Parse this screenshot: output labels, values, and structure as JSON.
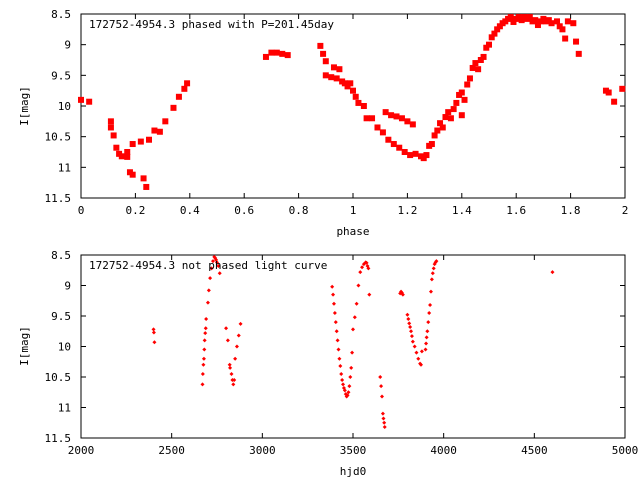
{
  "chart_data": [
    {
      "type": "scatter",
      "title": "172752-4954.3 phased with P=201.45day",
      "xlabel": "phase",
      "ylabel": "I[mag]",
      "xlim": [
        0,
        2
      ],
      "ylim": [
        8.5,
        11.5
      ],
      "y_inverted": true,
      "grid": false,
      "legend": "none",
      "color": "#ff0000",
      "xticks": [
        "0",
        "0.2",
        "0.4",
        "0.6",
        "0.8",
        "1",
        "1.2",
        "1.4",
        "1.6",
        "1.8",
        "2"
      ],
      "yticks": [
        "8.5",
        "9",
        "9.5",
        "10",
        "10.5",
        "11",
        "11.5"
      ],
      "points": [
        [
          0.0,
          9.9
        ],
        [
          0.03,
          9.93
        ],
        [
          0.11,
          10.25
        ],
        [
          0.11,
          10.35
        ],
        [
          0.12,
          10.48
        ],
        [
          0.13,
          10.68
        ],
        [
          0.14,
          10.78
        ],
        [
          0.15,
          10.82
        ],
        [
          0.17,
          10.75
        ],
        [
          0.17,
          10.83
        ],
        [
          0.18,
          11.08
        ],
        [
          0.19,
          11.12
        ],
        [
          0.19,
          10.62
        ],
        [
          0.22,
          10.58
        ],
        [
          0.23,
          11.18
        ],
        [
          0.24,
          11.32
        ],
        [
          0.25,
          10.55
        ],
        [
          0.27,
          10.4
        ],
        [
          0.29,
          10.42
        ],
        [
          0.31,
          10.25
        ],
        [
          0.34,
          10.03
        ],
        [
          0.36,
          9.85
        ],
        [
          0.38,
          9.72
        ],
        [
          0.39,
          9.63
        ],
        [
          0.68,
          9.2
        ],
        [
          0.7,
          9.13
        ],
        [
          0.72,
          9.13
        ],
        [
          0.74,
          9.15
        ],
        [
          0.76,
          9.17
        ],
        [
          0.88,
          9.02
        ],
        [
          0.89,
          9.15
        ],
        [
          0.9,
          9.27
        ],
        [
          0.9,
          9.5
        ],
        [
          0.92,
          9.53
        ],
        [
          0.93,
          9.37
        ],
        [
          0.94,
          9.55
        ],
        [
          0.95,
          9.4
        ],
        [
          0.96,
          9.6
        ],
        [
          0.97,
          9.63
        ],
        [
          0.98,
          9.68
        ],
        [
          0.99,
          9.63
        ],
        [
          1.0,
          9.75
        ],
        [
          1.01,
          9.85
        ],
        [
          1.02,
          9.95
        ],
        [
          1.04,
          10.0
        ],
        [
          1.05,
          10.2
        ],
        [
          1.07,
          10.2
        ],
        [
          1.09,
          10.35
        ],
        [
          1.11,
          10.43
        ],
        [
          1.12,
          10.1
        ],
        [
          1.13,
          10.55
        ],
        [
          1.14,
          10.15
        ],
        [
          1.15,
          10.62
        ],
        [
          1.16,
          10.17
        ],
        [
          1.17,
          10.68
        ],
        [
          1.18,
          10.2
        ],
        [
          1.19,
          10.75
        ],
        [
          1.2,
          10.25
        ],
        [
          1.21,
          10.8
        ],
        [
          1.22,
          10.3
        ],
        [
          1.23,
          10.78
        ],
        [
          1.25,
          10.82
        ],
        [
          1.26,
          10.85
        ],
        [
          1.27,
          10.8
        ],
        [
          1.28,
          10.65
        ],
        [
          1.29,
          10.62
        ],
        [
          1.3,
          10.48
        ],
        [
          1.31,
          10.4
        ],
        [
          1.32,
          10.28
        ],
        [
          1.33,
          10.35
        ],
        [
          1.34,
          10.18
        ],
        [
          1.35,
          10.1
        ],
        [
          1.36,
          10.2
        ],
        [
          1.37,
          10.05
        ],
        [
          1.38,
          9.95
        ],
        [
          1.39,
          9.82
        ],
        [
          1.4,
          9.78
        ],
        [
          1.4,
          10.15
        ],
        [
          1.41,
          9.9
        ],
        [
          1.42,
          9.65
        ],
        [
          1.43,
          9.55
        ],
        [
          1.44,
          9.38
        ],
        [
          1.45,
          9.3
        ],
        [
          1.46,
          9.4
        ],
        [
          1.47,
          9.25
        ],
        [
          1.48,
          9.2
        ],
        [
          1.49,
          9.05
        ],
        [
          1.5,
          9.0
        ],
        [
          1.51,
          8.88
        ],
        [
          1.52,
          8.82
        ],
        [
          1.53,
          8.75
        ],
        [
          1.54,
          8.7
        ],
        [
          1.55,
          8.65
        ],
        [
          1.56,
          8.62
        ],
        [
          1.57,
          8.58
        ],
        [
          1.58,
          8.55
        ],
        [
          1.59,
          8.63
        ],
        [
          1.6,
          8.58
        ],
        [
          1.61,
          8.55
        ],
        [
          1.62,
          8.6
        ],
        [
          1.63,
          8.55
        ],
        [
          1.64,
          8.58
        ],
        [
          1.65,
          8.55
        ],
        [
          1.66,
          8.62
        ],
        [
          1.67,
          8.6
        ],
        [
          1.68,
          8.68
        ],
        [
          1.69,
          8.62
        ],
        [
          1.7,
          8.58
        ],
        [
          1.71,
          8.62
        ],
        [
          1.72,
          8.6
        ],
        [
          1.73,
          8.65
        ],
        [
          1.75,
          8.62
        ],
        [
          1.76,
          8.7
        ],
        [
          1.77,
          8.75
        ],
        [
          1.78,
          8.9
        ],
        [
          1.79,
          8.62
        ],
        [
          1.81,
          8.65
        ],
        [
          1.82,
          8.95
        ],
        [
          1.83,
          9.15
        ],
        [
          1.93,
          9.75
        ],
        [
          1.94,
          9.78
        ],
        [
          1.96,
          9.93
        ],
        [
          1.99,
          9.72
        ]
      ]
    },
    {
      "type": "scatter",
      "title": "172752-4954.3 not phased light curve",
      "xlabel": "hjd0",
      "ylabel": "I[mag]",
      "xlim": [
        2000,
        5000
      ],
      "ylim": [
        8.5,
        11.5
      ],
      "y_inverted": true,
      "grid": false,
      "legend": "none",
      "color": "#ff0000",
      "xticks": [
        "2000",
        "2500",
        "3000",
        "3500",
        "4000",
        "4500",
        "5000"
      ],
      "yticks": [
        "8.5",
        "9",
        "9.5",
        "10",
        "10.5",
        "11",
        "11.5"
      ],
      "points": [
        [
          2400,
          9.72
        ],
        [
          2402,
          9.77
        ],
        [
          2405,
          9.93
        ],
        [
          2670,
          10.62
        ],
        [
          2672,
          10.45
        ],
        [
          2675,
          10.3
        ],
        [
          2678,
          10.2
        ],
        [
          2680,
          10.05
        ],
        [
          2682,
          9.9
        ],
        [
          2685,
          9.78
        ],
        [
          2688,
          9.7
        ],
        [
          2690,
          9.55
        ],
        [
          2700,
          9.28
        ],
        [
          2705,
          9.08
        ],
        [
          2712,
          8.88
        ],
        [
          2720,
          8.72
        ],
        [
          2728,
          8.6
        ],
        [
          2735,
          8.53
        ],
        [
          2740,
          8.55
        ],
        [
          2745,
          8.58
        ],
        [
          2750,
          8.62
        ],
        [
          2758,
          8.68
        ],
        [
          2765,
          8.8
        ],
        [
          2800,
          9.7
        ],
        [
          2810,
          9.9
        ],
        [
          2820,
          10.3
        ],
        [
          2822,
          10.35
        ],
        [
          2830,
          10.45
        ],
        [
          2835,
          10.55
        ],
        [
          2840,
          10.62
        ],
        [
          2845,
          10.55
        ],
        [
          2850,
          10.2
        ],
        [
          2860,
          10.0
        ],
        [
          2870,
          9.82
        ],
        [
          2880,
          9.63
        ],
        [
          3385,
          9.02
        ],
        [
          3390,
          9.15
        ],
        [
          3395,
          9.3
        ],
        [
          3400,
          9.45
        ],
        [
          3405,
          9.6
        ],
        [
          3410,
          9.75
        ],
        [
          3415,
          9.9
        ],
        [
          3420,
          10.05
        ],
        [
          3425,
          10.2
        ],
        [
          3430,
          10.32
        ],
        [
          3435,
          10.45
        ],
        [
          3440,
          10.55
        ],
        [
          3445,
          10.62
        ],
        [
          3450,
          10.68
        ],
        [
          3455,
          10.72
        ],
        [
          3460,
          10.78
        ],
        [
          3465,
          10.82
        ],
        [
          3470,
          10.8
        ],
        [
          3475,
          10.75
        ],
        [
          3480,
          10.65
        ],
        [
          3485,
          10.5
        ],
        [
          3490,
          10.35
        ],
        [
          3495,
          10.1
        ],
        [
          3500,
          9.72
        ],
        [
          3510,
          9.52
        ],
        [
          3520,
          9.3
        ],
        [
          3530,
          9.0
        ],
        [
          3540,
          8.78
        ],
        [
          3550,
          8.7
        ],
        [
          3560,
          8.65
        ],
        [
          3570,
          8.62
        ],
        [
          3575,
          8.63
        ],
        [
          3580,
          8.68
        ],
        [
          3585,
          8.72
        ],
        [
          3590,
          9.15
        ],
        [
          3650,
          10.5
        ],
        [
          3655,
          10.65
        ],
        [
          3660,
          10.82
        ],
        [
          3665,
          11.1
        ],
        [
          3668,
          11.18
        ],
        [
          3672,
          11.25
        ],
        [
          3675,
          11.32
        ],
        [
          3760,
          9.13
        ],
        [
          3765,
          9.1
        ],
        [
          3770,
          9.12
        ],
        [
          3775,
          9.15
        ],
        [
          3800,
          9.48
        ],
        [
          3805,
          9.55
        ],
        [
          3810,
          9.62
        ],
        [
          3815,
          9.68
        ],
        [
          3820,
          9.75
        ],
        [
          3825,
          9.83
        ],
        [
          3830,
          9.92
        ],
        [
          3840,
          10.0
        ],
        [
          3850,
          10.1
        ],
        [
          3860,
          10.2
        ],
        [
          3870,
          10.28
        ],
        [
          3875,
          10.3
        ],
        [
          3880,
          10.08
        ],
        [
          3900,
          10.05
        ],
        [
          3903,
          9.95
        ],
        [
          3906,
          9.85
        ],
        [
          3910,
          9.75
        ],
        [
          3915,
          9.6
        ],
        [
          3920,
          9.45
        ],
        [
          3925,
          9.32
        ],
        [
          3930,
          9.1
        ],
        [
          3935,
          8.9
        ],
        [
          3940,
          8.8
        ],
        [
          3945,
          8.72
        ],
        [
          3950,
          8.65
        ],
        [
          3955,
          8.62
        ],
        [
          3960,
          8.6
        ],
        [
          4600,
          8.78
        ]
      ]
    }
  ]
}
